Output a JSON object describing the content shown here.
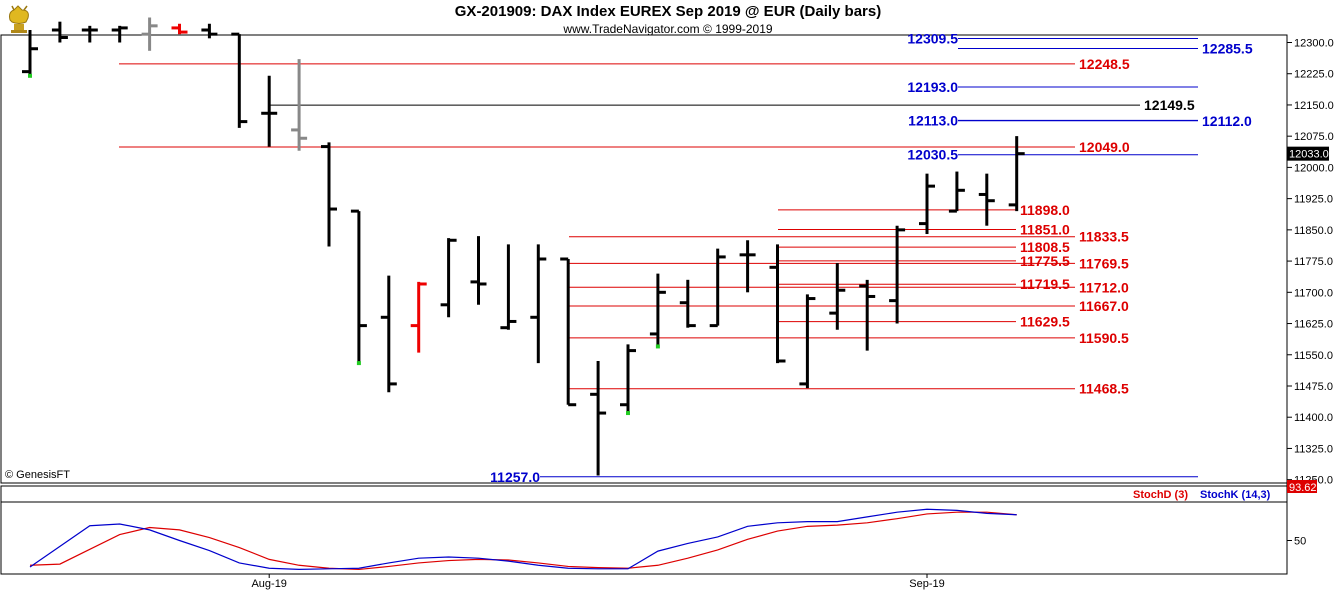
{
  "title": "GX-201909:  DAX Index EUREX Sep 2019 @ EUR  (Daily bars)",
  "subtitle": "www.TradeNavigator.com © 1999-2019",
  "watermark": "© GenesisFT",
  "logo_icon": "gold-bull-trophy-icon",
  "colors": {
    "bar": "#000000",
    "bar_up_mark": "#22cc22",
    "bar_red": "#ee0000",
    "bar_gray": "#888888",
    "red_level": "#dd0000",
    "blue_level": "#0000cc",
    "black_level": "#000000",
    "stoch_d": "#dd0000",
    "stoch_k": "#0000cc"
  },
  "chart_data": [
    {
      "type": "ohlc",
      "title": "GX-201909:  DAX Index EUREX Sep 2019 @ EUR  (Daily bars)",
      "y_axis": {
        "ticks": [
          11250.0,
          11325.0,
          11400.0,
          11475.0,
          11550.0,
          11625.0,
          11700.0,
          11775.0,
          11850.0,
          11925.0,
          12000.0,
          12075.0,
          12150.0,
          12225.0,
          12300.0
        ],
        "range": [
          11242,
          12318
        ],
        "side": "right"
      },
      "x_axis": {
        "labels": [
          {
            "text": "Aug-19",
            "bar_index": 8
          },
          {
            "text": "Sep-19",
            "bar_index": 30
          }
        ]
      },
      "last_price_label": "12033.0",
      "bars": [
        {
          "o": 12230,
          "h": 12330,
          "l": 12220,
          "c": 12285,
          "mark": "green"
        },
        {
          "o": 12330,
          "h": 12350,
          "l": 12300,
          "c": 12312
        },
        {
          "o": 12330,
          "h": 12340,
          "l": 12300,
          "c": 12330
        },
        {
          "o": 12330,
          "h": 12340,
          "l": 12300,
          "c": 12335
        },
        {
          "o": 12320,
          "h": 12360,
          "l": 12280,
          "c": 12340,
          "color": "gray"
        },
        {
          "o": 12335,
          "h": 12345,
          "l": 12320,
          "c": 12325,
          "color": "red"
        },
        {
          "o": 12330,
          "h": 12345,
          "l": 12310,
          "c": 12320
        },
        {
          "o": 12320,
          "h": 12320,
          "l": 12095,
          "c": 12110
        },
        {
          "o": 12130,
          "h": 12220,
          "l": 12050,
          "c": 12130
        },
        {
          "o": 12090,
          "h": 12260,
          "l": 12040,
          "c": 12070,
          "color": "gray"
        },
        {
          "o": 12050,
          "h": 12060,
          "l": 11810,
          "c": 11900
        },
        {
          "o": 11895,
          "h": 11895,
          "l": 11530,
          "c": 11620,
          "mark": "green"
        },
        {
          "o": 11640,
          "h": 11740,
          "l": 11460,
          "c": 11480
        },
        {
          "o": 11620,
          "h": 11725,
          "l": 11555,
          "c": 11720,
          "color": "red"
        },
        {
          "o": 11670,
          "h": 11830,
          "l": 11640,
          "c": 11825
        },
        {
          "o": 11725,
          "h": 11835,
          "l": 11670,
          "c": 11720
        },
        {
          "o": 11615,
          "h": 11815,
          "l": 11610,
          "c": 11630
        },
        {
          "o": 11640,
          "h": 11815,
          "l": 11530,
          "c": 11780
        },
        {
          "o": 11780,
          "h": 11780,
          "l": 11430,
          "c": 11430
        },
        {
          "o": 11455,
          "h": 11535,
          "l": 11260,
          "c": 11410
        },
        {
          "o": 11430,
          "h": 11575,
          "l": 11410,
          "c": 11560,
          "mark": "green"
        },
        {
          "o": 11600,
          "h": 11745,
          "l": 11570,
          "c": 11700,
          "mark": "green"
        },
        {
          "o": 11675,
          "h": 11730,
          "l": 11615,
          "c": 11620
        },
        {
          "o": 11620,
          "h": 11805,
          "l": 11620,
          "c": 11785
        },
        {
          "o": 11790,
          "h": 11825,
          "l": 11700,
          "c": 11790
        },
        {
          "o": 11760,
          "h": 11815,
          "l": 11530,
          "c": 11535
        },
        {
          "o": 11480,
          "h": 11695,
          "l": 11470,
          "c": 11685
        },
        {
          "o": 11650,
          "h": 11770,
          "l": 11610,
          "c": 11705
        },
        {
          "o": 11715,
          "h": 11730,
          "l": 11560,
          "c": 11690
        },
        {
          "o": 11680,
          "h": 11860,
          "l": 11625,
          "c": 11850
        },
        {
          "o": 11865,
          "h": 11985,
          "l": 11840,
          "c": 11955
        },
        {
          "o": 11895,
          "h": 11990,
          "l": 11895,
          "c": 11945
        },
        {
          "o": 11935,
          "h": 11985,
          "l": 11860,
          "c": 11920
        },
        {
          "o": 11910,
          "h": 12075,
          "l": 11895,
          "c": 12033
        }
      ],
      "levels": [
        {
          "value": 12309.5,
          "label": "12309.5",
          "color": "blue",
          "label_pos": "left"
        },
        {
          "value": 12285.5,
          "label": "12285.5",
          "color": "blue",
          "label_pos": "right"
        },
        {
          "value": 12248.5,
          "label": "12248.5",
          "color": "red",
          "label_pos": "right"
        },
        {
          "value": 12193.0,
          "label": "12193.0",
          "color": "blue",
          "label_pos": "left"
        },
        {
          "value": 12149.5,
          "label": "12149.5",
          "color": "black",
          "label_pos": "right"
        },
        {
          "value": 12113.0,
          "label": "12113.0",
          "color": "blue",
          "label_pos": "left"
        },
        {
          "value": 12112.0,
          "label": "12112.0",
          "color": "blue",
          "label_pos": "right"
        },
        {
          "value": 12049.0,
          "label": "12049.0",
          "color": "red",
          "label_pos": "right"
        },
        {
          "value": 12030.5,
          "label": "12030.5",
          "color": "blue",
          "label_pos": "left"
        },
        {
          "value": 11898.0,
          "label": "11898.0",
          "color": "red",
          "label_pos": "right"
        },
        {
          "value": 11851.0,
          "label": "11851.0",
          "color": "red",
          "label_pos": "right"
        },
        {
          "value": 11833.5,
          "label": "11833.5",
          "color": "red",
          "label_pos": "right"
        },
        {
          "value": 11808.5,
          "label": "11808.5",
          "color": "red",
          "label_pos": "right"
        },
        {
          "value": 11775.5,
          "label": "11775.5",
          "color": "red",
          "label_pos": "right"
        },
        {
          "value": 11769.5,
          "label": "11769.5",
          "color": "red",
          "label_pos": "right"
        },
        {
          "value": 11719.5,
          "label": "11719.5",
          "color": "red",
          "label_pos": "right"
        },
        {
          "value": 11712.0,
          "label": "11712.0",
          "color": "red",
          "label_pos": "right"
        },
        {
          "value": 11667.0,
          "label": "11667.0",
          "color": "red",
          "label_pos": "right"
        },
        {
          "value": 11629.5,
          "label": "11629.5",
          "color": "red",
          "label_pos": "right"
        },
        {
          "value": 11590.5,
          "label": "11590.5",
          "color": "red",
          "label_pos": "right"
        },
        {
          "value": 11468.5,
          "label": "11468.5",
          "color": "red",
          "label_pos": "right"
        },
        {
          "value": 11257.0,
          "label": "11257.0",
          "color": "blue",
          "label_pos": "left"
        }
      ]
    },
    {
      "type": "line",
      "title": "",
      "y_axis": {
        "ticks": [
          50
        ],
        "range": [
          0,
          100
        ]
      },
      "series": [
        {
          "name": "StochD (3)",
          "color": "red",
          "values": [
            8,
            10,
            35,
            60,
            72,
            68,
            55,
            38,
            18,
            8,
            3,
            1,
            6,
            12,
            16,
            18,
            17,
            12,
            6,
            4,
            3,
            8,
            20,
            34,
            52,
            66,
            74,
            76,
            80,
            87,
            95,
            98,
            98,
            93.62
          ]
        },
        {
          "name": "StochK (14,3)",
          "color": "blue",
          "values": [
            5,
            40,
            75,
            78,
            68,
            50,
            33,
            12,
            3,
            1,
            2,
            3,
            12,
            20,
            22,
            20,
            15,
            8,
            3,
            2,
            2,
            32,
            45,
            56,
            74,
            80,
            82,
            82,
            90,
            98,
            103,
            101,
            96,
            93.62
          ]
        }
      ],
      "last_value_label": "93.62"
    }
  ]
}
